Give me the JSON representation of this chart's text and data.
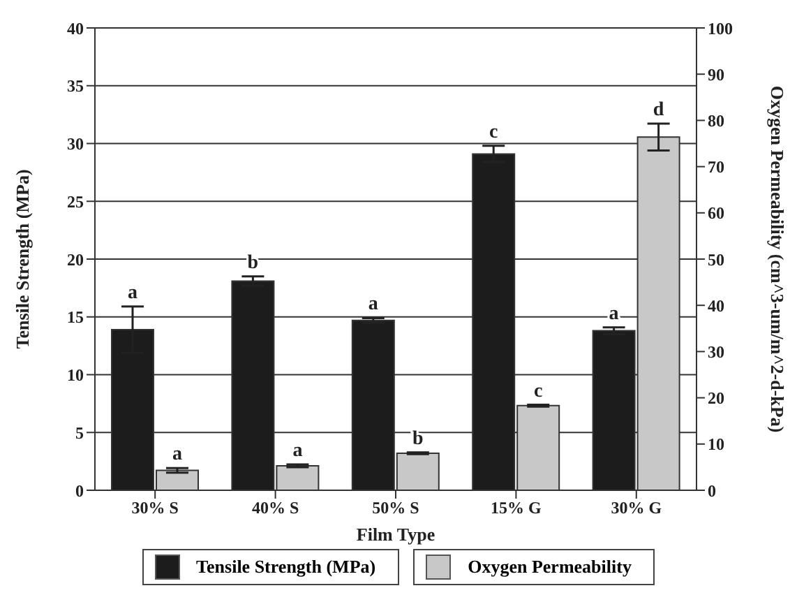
{
  "chart_data": {
    "type": "bar",
    "xlabel": "Film Type",
    "ylabel": "Tensile Strength (MPa)",
    "y2label": "Oxygen Permeability (cm^3-um/m^2-d-kPa)",
    "categories": [
      "30% S",
      "40% S",
      "50% S",
      "15% G",
      "30% G"
    ],
    "series": [
      {
        "name": "Tensile Strength (MPa)",
        "color": "#1c1c1c",
        "values": [
          13.9,
          18.1,
          14.7,
          29.1,
          13.8
        ],
        "errors": [
          2.0,
          0.4,
          0.2,
          0.7,
          0.3
        ],
        "value_labels": [
          "a",
          "b",
          "a",
          "c",
          "a"
        ]
      },
      {
        "name": "Oxygen Permeability",
        "color": "#c8c8c8",
        "axis": "y2",
        "values": [
          4.3,
          5.3,
          8.0,
          18.3,
          76.4
        ],
        "errors": [
          0.5,
          0.3,
          0.2,
          0.2,
          2.9
        ],
        "value_labels": [
          "a",
          "a",
          "b",
          "c",
          "d"
        ]
      }
    ],
    "ylim": [
      0,
      40
    ],
    "yticks": [
      0,
      5,
      10,
      15,
      20,
      25,
      30,
      35,
      40
    ],
    "y2lim": [
      0,
      100
    ],
    "y2ticks": [
      0,
      10,
      20,
      30,
      40,
      50,
      60,
      70,
      80,
      90,
      100
    ],
    "grid": "y",
    "legend": "bottom"
  }
}
